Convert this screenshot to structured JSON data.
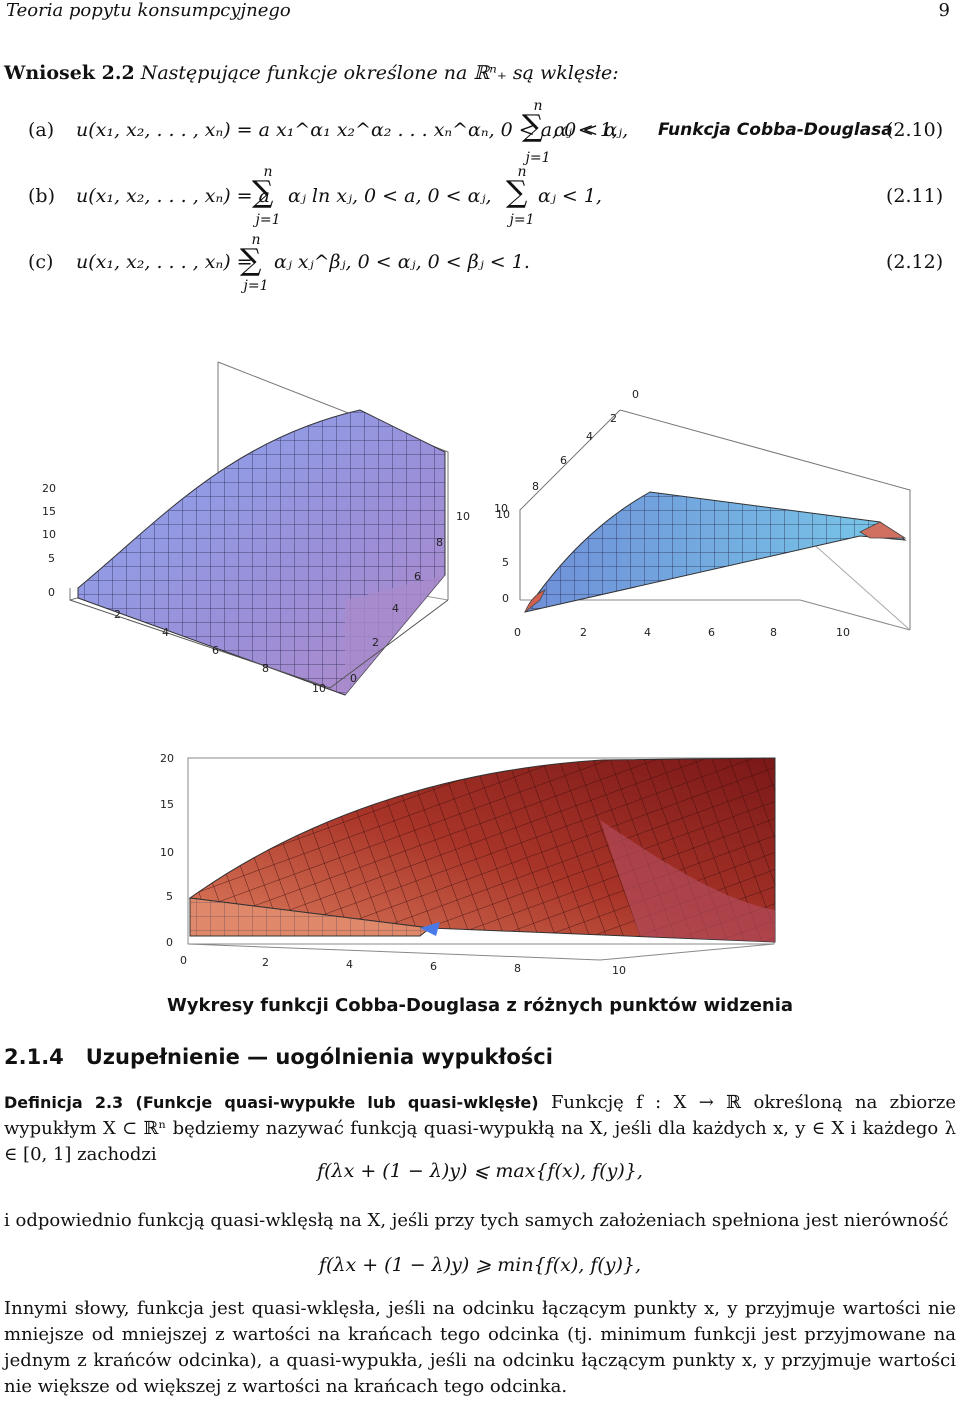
{
  "header": {
    "title": "Teoria popytu konsumpcyjnego",
    "page_number": "9"
  },
  "corollary": {
    "label": "Wniosek 2.2",
    "text": "Następujące funkcje określone na ℝⁿ₊ są wklęsłe:"
  },
  "equations": [
    {
      "item": "(a)",
      "formula": "u(x₁, x₂, . . . , xₙ) = a x₁^α₁ x₂^α₂ . . . xₙ^αₙ,   0 < a,  0 < αⱼ,",
      "tail": "αⱼ < 1,",
      "name": "Funkcja Cobba-Douglasa",
      "number": "(2.10)"
    },
    {
      "item": "(b)",
      "formula": "u(x₁, x₂, . . . , xₙ) = a",
      "mid": "αⱼ ln xⱼ,   0 < a,  0 < αⱼ,",
      "tail": "αⱼ < 1,",
      "number": "(2.11)"
    },
    {
      "item": "(c)",
      "formula": "u(x₁, x₂, . . . , xₙ) =",
      "mid": "αⱼ xⱼ^βⱼ,   0 < αⱼ,  0 < βⱼ < 1.",
      "number": "(2.12)"
    }
  ],
  "sum_limits": {
    "upper": "n",
    "lower": "j=1"
  },
  "plots": {
    "left_axis_z": [
      "20",
      "15",
      "10",
      "5",
      "0"
    ],
    "left_axis_x": [
      "2",
      "4",
      "6",
      "8",
      "10"
    ],
    "left_axis_y": [
      "10",
      "8",
      "6",
      "4",
      "2",
      "0"
    ],
    "right_axis_top": [
      "0",
      "2",
      "4",
      "6",
      "8",
      "10"
    ],
    "right_axis_z": [
      "10",
      "5",
      "0"
    ],
    "right_axis_bottom": [
      "0",
      "2",
      "4",
      "6",
      "8",
      "10"
    ],
    "bottom_axis_z": [
      "20",
      "15",
      "10",
      "5",
      "0"
    ],
    "bottom_axis_x": [
      "0",
      "2",
      "4",
      "6",
      "8",
      "10"
    ]
  },
  "caption": "Wykresy funkcji Cobba-Douglasa z różnych punktów widzenia",
  "section": {
    "number": "2.1.4",
    "title": "Uzupełnienie — uogólnienia wypukłości"
  },
  "definition": {
    "label": "Definicja 2.3",
    "title": "(Funkcje quasi-wypukłe lub quasi-wklęsłe)",
    "line1": "Funkcję f : X → ℝ określoną na zbiorze wypukłym",
    "line2": "X ⊂ ℝⁿ będziemy nazywać funkcją quasi-wypukłą na X, jeśli dla każdych x, y ∈ X i każdego λ ∈ [0, 1] zachodzi",
    "eq1": "f(λx + (1 − λ)y) ⩽ max{f(x), f(y)},",
    "mid": "i odpowiednio funkcją quasi-wklęsłą na X, jeśli przy tych samych założeniach spełniona jest nierówność",
    "eq2": "f(λx + (1 − λ)y) ⩾ min{f(x), f(y)},",
    "para": "Innymi słowy, funkcja jest quasi-wklęsła, jeśli na odcinku łączącym punkty x, y przyjmuje wartości nie mniejsze od mniejszej z wartości na krańcach tego odcinka (tj. minimum funkcji jest przyjmowane na jednym z krańców odcinka), a quasi-wypukła, jeśli na odcinku łączącym punkty x, y przyjmuje wartości nie większe od większej z wartości na krańcach tego odcinka."
  }
}
